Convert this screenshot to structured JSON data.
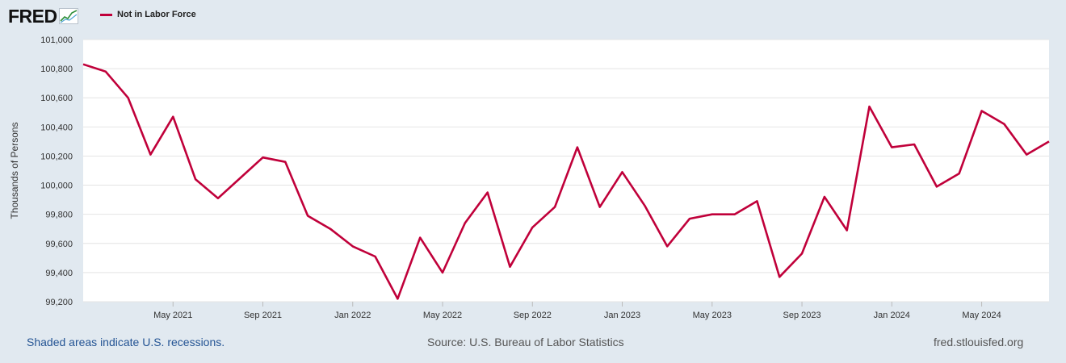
{
  "logo": {
    "text": "FRED"
  },
  "legend": {
    "label": "Not in Labor Force",
    "color": "#c0003a"
  },
  "footer": {
    "recession_note": "Shaded areas indicate U.S. recessions.",
    "source": "Source: U.S. Bureau of Labor Statistics",
    "site": "fred.stlouisfed.org"
  },
  "chart_data": {
    "type": "line",
    "title": "",
    "xlabel": "",
    "ylabel": "Thousands of Persons",
    "ylim": [
      99200,
      101000
    ],
    "yticks": [
      99200,
      99400,
      99600,
      99800,
      100000,
      100200,
      100400,
      100600,
      100800,
      101000
    ],
    "ytick_labels": [
      "99,200",
      "99,400",
      "99,600",
      "99,800",
      "100,000",
      "100,200",
      "100,400",
      "100,600",
      "100,800",
      "101,000"
    ],
    "xticks": [
      "2021-05",
      "2021-09",
      "2022-01",
      "2022-05",
      "2022-09",
      "2023-01",
      "2023-05",
      "2023-09",
      "2024-01",
      "2024-05"
    ],
    "xtick_labels": [
      "May 2021",
      "Sep 2021",
      "Jan 2022",
      "May 2022",
      "Sep 2022",
      "Jan 2023",
      "May 2023",
      "Sep 2023",
      "Jan 2024",
      "May 2024"
    ],
    "x_range": [
      "2021-01",
      "2024-08"
    ],
    "grid": true,
    "legend_position": "top-left",
    "series": [
      {
        "name": "Not in Labor Force",
        "color": "#c0003a",
        "x": [
          "2021-01",
          "2021-02",
          "2021-03",
          "2021-04",
          "2021-05",
          "2021-06",
          "2021-07",
          "2021-08",
          "2021-09",
          "2021-10",
          "2021-11",
          "2021-12",
          "2022-01",
          "2022-02",
          "2022-03",
          "2022-04",
          "2022-05",
          "2022-06",
          "2022-07",
          "2022-08",
          "2022-09",
          "2022-10",
          "2022-11",
          "2022-12",
          "2023-01",
          "2023-02",
          "2023-03",
          "2023-04",
          "2023-05",
          "2023-06",
          "2023-07",
          "2023-08",
          "2023-09",
          "2023-10",
          "2023-11",
          "2023-12",
          "2024-01",
          "2024-02",
          "2024-03",
          "2024-04",
          "2024-05",
          "2024-06",
          "2024-07",
          "2024-08"
        ],
        "values": [
          100830,
          100780,
          100600,
          100210,
          100470,
          100040,
          99910,
          100050,
          100190,
          100160,
          99790,
          99700,
          99580,
          99510,
          99220,
          99640,
          99400,
          99740,
          99950,
          99440,
          99710,
          99850,
          100260,
          99850,
          100090,
          99860,
          99580,
          99770,
          99800,
          99800,
          99890,
          99370,
          99530,
          99920,
          99690,
          100540,
          100260,
          100280,
          99990,
          100080,
          100510,
          100420,
          100210,
          100300
        ]
      }
    ]
  }
}
